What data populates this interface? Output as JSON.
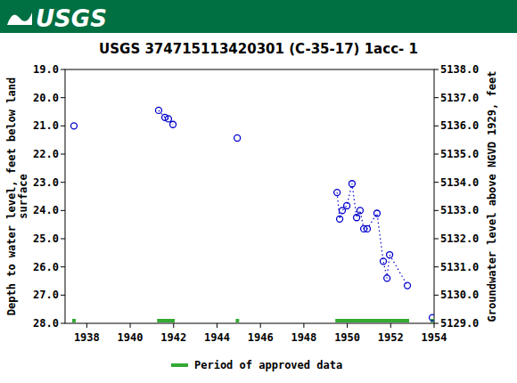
{
  "logo_text": "USGS",
  "chart_data": {
    "type": "scatter",
    "title": "USGS 374715113420301  (C-35-17) 1acc- 1",
    "ylabel": [
      "Depth to water level, feet below land",
      "surface"
    ],
    "y2label": "Groundwater level above NGVD 1929, feet",
    "xlim": [
      1937.0,
      1954.0
    ],
    "xticks": [
      1938,
      1940,
      1942,
      1944,
      1946,
      1948,
      1950,
      1952,
      1954
    ],
    "ylim": [
      28,
      19
    ],
    "yticks": [
      {
        "value": 19,
        "label": "19.0"
      },
      {
        "value": 20,
        "label": "20.0"
      },
      {
        "value": 21,
        "label": "21.0"
      },
      {
        "value": 22,
        "label": "22.0"
      },
      {
        "value": 23,
        "label": "23.0"
      },
      {
        "value": 24,
        "label": "24.0"
      },
      {
        "value": 25,
        "label": "25.0"
      },
      {
        "value": 26,
        "label": "26.0"
      },
      {
        "value": 27,
        "label": "27.0"
      },
      {
        "value": 28,
        "label": "28.0"
      }
    ],
    "y2lim": [
      5129,
      5138
    ],
    "y2ticks": [
      {
        "value": 5138,
        "label": "5138.0"
      },
      {
        "value": 5137,
        "label": "5137.0"
      },
      {
        "value": 5136,
        "label": "5136.0"
      },
      {
        "value": 5135,
        "label": "5135.0"
      },
      {
        "value": 5134,
        "label": "5134.0"
      },
      {
        "value": 5133,
        "label": "5133.0"
      },
      {
        "value": 5132,
        "label": "5132.0"
      },
      {
        "value": 5131,
        "label": "5131.0"
      },
      {
        "value": 5130,
        "label": "5130.0"
      },
      {
        "value": 5129,
        "label": "5129.0"
      }
    ],
    "grid": false,
    "marker": "circle",
    "line_style": "dotted",
    "color": "#0000cc",
    "series": [
      {
        "x": [
          1937.41
        ],
        "values": [
          21.0
        ]
      },
      {
        "x": [
          1941.31,
          1941.6,
          1941.76,
          1941.97
        ],
        "values": [
          20.45,
          20.7,
          20.75,
          20.95
        ]
      },
      {
        "x": [
          1944.93
        ],
        "values": [
          21.43
        ]
      },
      {
        "x": [
          1949.53,
          1949.65,
          1949.77,
          1949.98,
          1950.22,
          1950.43,
          1950.59,
          1950.76,
          1950.92,
          1951.37,
          1951.66,
          1951.83,
          1951.95,
          1952.77
        ],
        "values": [
          23.36,
          24.3,
          24.0,
          23.83,
          23.05,
          24.25,
          24.0,
          24.65,
          24.65,
          24.1,
          25.8,
          26.4,
          25.57,
          26.66
        ]
      },
      {
        "x": [
          1953.92
        ],
        "values": [
          27.8
        ]
      }
    ],
    "approved_periods": [
      [
        1937.33,
        1937.49
      ],
      [
        1941.24,
        1942.05
      ],
      [
        1944.86,
        1945.02
      ],
      [
        1949.45,
        1952.85
      ],
      [
        1953.84,
        1954.0
      ]
    ],
    "approved_color": "#33aa33",
    "legend_label": "Period of approved data",
    "legend": "bottom"
  }
}
